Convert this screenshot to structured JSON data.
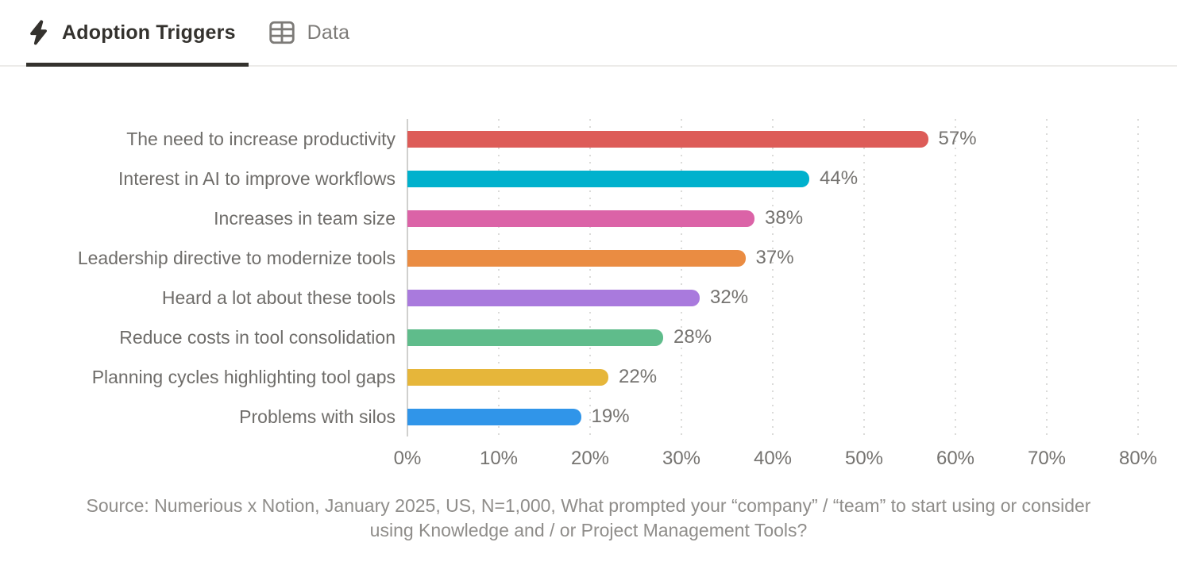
{
  "tabs": [
    {
      "label": "Adoption Triggers",
      "icon": "lightning-icon",
      "active": true
    },
    {
      "label": "Data",
      "icon": "table-icon",
      "active": false
    }
  ],
  "chart_data": {
    "type": "bar",
    "orientation": "horizontal",
    "title": "Adoption Triggers",
    "categories": [
      "The need to increase productivity",
      "Interest in AI to improve workflows",
      "Increases in team size",
      "Leadership directive to modernize tools",
      "Heard a lot about these tools",
      "Reduce costs in tool consolidation",
      "Planning cycles highlighting tool gaps",
      "Problems with silos"
    ],
    "values": [
      57,
      44,
      38,
      37,
      32,
      28,
      22,
      19
    ],
    "value_labels": [
      "57%",
      "44%",
      "38%",
      "37%",
      "32%",
      "28%",
      "22%",
      "19%"
    ],
    "bar_colors": [
      "#DD5C58",
      "#00B1CD",
      "#DB63A7",
      "#EA8C42",
      "#A97ADD",
      "#5FBC8B",
      "#E6B63A",
      "#3095E9"
    ],
    "x_ticks": [
      "0%",
      "10%",
      "20%",
      "30%",
      "40%",
      "50%",
      "60%",
      "70%",
      "80%"
    ],
    "xlim": [
      0,
      80
    ],
    "grid": "dotted-vertical",
    "legend": "none"
  },
  "source": {
    "text": "Source: Numerious x Notion, January 2025, US, N=1,000, What prompted your “company” / “team” to start using or consider using Knowledge and / or Project Management Tools?"
  },
  "colors": {
    "active_tab": "#34322E",
    "inactive_tab": "#7D7B78",
    "tab_border": "#ECEBE9",
    "category_text": "#6F6D6A",
    "value_text": "#757370",
    "gridline": "#DBDBD9",
    "axis_line": "#D0D0CE",
    "source_text": "#8F8D8A"
  }
}
